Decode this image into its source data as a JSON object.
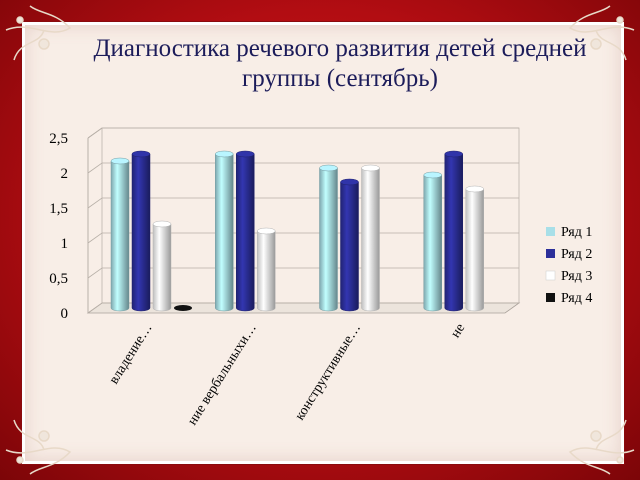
{
  "slide": {
    "title": "Диагностика речевого развития детей средней группы (сентябрь)"
  },
  "colors": {
    "background": "#b20d12",
    "panel": "#f8eee7",
    "series": [
      "#a8dfe8",
      "#2c2f9a",
      "#ffffff",
      "#111111"
    ]
  },
  "chart_data": {
    "type": "bar",
    "title": "Диагностика речевого развития детей средней группы (сентябрь)",
    "categories": [
      "владение…",
      "ние вербальныхи…",
      "конструктивные…",
      "не"
    ],
    "series": [
      {
        "name": "Ряд 1",
        "values": [
          2.1,
          2.2,
          2.0,
          1.9
        ]
      },
      {
        "name": "Ряд 2",
        "values": [
          2.2,
          2.2,
          1.8,
          2.2
        ]
      },
      {
        "name": "Ряд 3",
        "values": [
          1.2,
          1.1,
          2.0,
          1.7
        ]
      },
      {
        "name": "Ряд 4",
        "values": [
          0.02,
          0,
          0,
          0
        ]
      }
    ],
    "yticks": [
      "0",
      "0,5",
      "1",
      "1,5",
      "2",
      "2,5"
    ],
    "ylim": [
      0,
      2.5
    ],
    "grid": true,
    "legend_position": "right",
    "style": "3d cylinder bars"
  }
}
